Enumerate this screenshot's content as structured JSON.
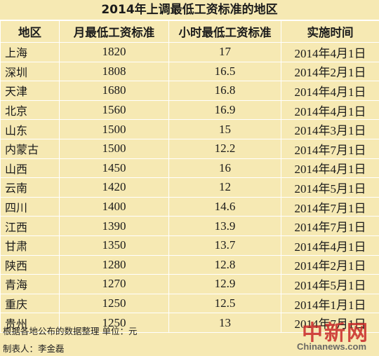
{
  "title": "2014年上调最低工资标准的地区",
  "headers": [
    "地区",
    "月最低工资标准",
    "小时最低工资标准",
    "实施时间"
  ],
  "rows": [
    {
      "region": "上海",
      "monthly": "1820",
      "hourly": "17",
      "date": "2014年4月1日"
    },
    {
      "region": "深圳",
      "monthly": "1808",
      "hourly": "16.5",
      "date": "2014年2月1日"
    },
    {
      "region": "天津",
      "monthly": "1680",
      "hourly": "16.8",
      "date": "2014年4月1日"
    },
    {
      "region": "北京",
      "monthly": "1560",
      "hourly": "16.9",
      "date": "2014年4月1日"
    },
    {
      "region": "山东",
      "monthly": "1500",
      "hourly": "15",
      "date": "2014年3月1日"
    },
    {
      "region": "内蒙古",
      "monthly": "1500",
      "hourly": "12.2",
      "date": "2014年7月1日"
    },
    {
      "region": "山西",
      "monthly": "1450",
      "hourly": "16",
      "date": "2014年4月1日"
    },
    {
      "region": "云南",
      "monthly": "1420",
      "hourly": "12",
      "date": "2014年5月1日"
    },
    {
      "region": "四川",
      "monthly": "1400",
      "hourly": "14.6",
      "date": "2014年7月1日"
    },
    {
      "region": "江西",
      "monthly": "1390",
      "hourly": "13.9",
      "date": "2014年7月1日"
    },
    {
      "region": "甘肃",
      "monthly": "1350",
      "hourly": "13.7",
      "date": "2014年4月1日"
    },
    {
      "region": "陕西",
      "monthly": "1280",
      "hourly": "12.8",
      "date": "2014年2月1日"
    },
    {
      "region": "青海",
      "monthly": "1270",
      "hourly": "12.9",
      "date": "2014年5月1日"
    },
    {
      "region": "重庆",
      "monthly": "1250",
      "hourly": "12.5",
      "date": "2014年1月1日"
    },
    {
      "region": "贵州",
      "monthly": "1250",
      "hourly": "13",
      "date": "2014年7月1日"
    }
  ],
  "footnotes": {
    "source": "根据各地公布的数据整理 单位：元",
    "author": "制表人：李金磊"
  },
  "watermark": {
    "logo": "中新网",
    "url": "Chinanews.com"
  },
  "colors": {
    "background": "#f6e9b3",
    "grid": "#ffffff",
    "watermark": "#c82828"
  }
}
